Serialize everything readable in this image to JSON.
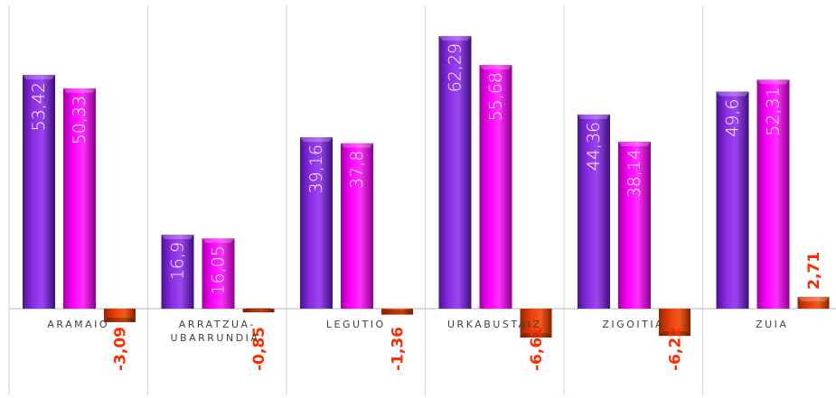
{
  "chart_data": {
    "type": "bar",
    "categories": [
      "ARAMAIO",
      "ARRATZUA-UBARRUNDIA",
      "LEGUTIO",
      "URKABUSTAIZ",
      "ZIGOITIA",
      "ZUIA"
    ],
    "category_lines": [
      [
        "ARAMAIO"
      ],
      [
        "ARRATZUA-",
        "UBARRUNDIA"
      ],
      [
        "LEGUTIO"
      ],
      [
        "URKABUSTAIZ"
      ],
      [
        "ZIGOITIA"
      ],
      [
        "ZUIA"
      ]
    ],
    "series": [
      {
        "values": [
          53.42,
          16.9,
          39.16,
          62.29,
          44.36,
          49.6
        ],
        "labels": [
          "53,42",
          "16,9",
          "39,16",
          "62,29",
          "44,36",
          "49,6"
        ],
        "color": "#8a2be2"
      },
      {
        "values": [
          50.33,
          16.05,
          37.8,
          55.68,
          38.14,
          52.31
        ],
        "labels": [
          "50,33",
          "16,05",
          "37,8",
          "55,68",
          "38,14",
          "52,31"
        ],
        "color": "#ff00ff"
      },
      {
        "values": [
          -3.09,
          -0.85,
          -1.36,
          -6.61,
          -6.22,
          2.71
        ],
        "labels": [
          "-3,09",
          "-0,85",
          "-1,36",
          "-6,61",
          "-6,22",
          "2,71"
        ],
        "color": "#e8400c"
      }
    ],
    "colors": {
      "series1": "#8a2be2",
      "series2": "#ff00ff",
      "diff": "#e8400c",
      "diff_label": "#ff2a00"
    },
    "ylim": [
      -10,
      70
    ],
    "gridlines": "vertical category separators"
  }
}
